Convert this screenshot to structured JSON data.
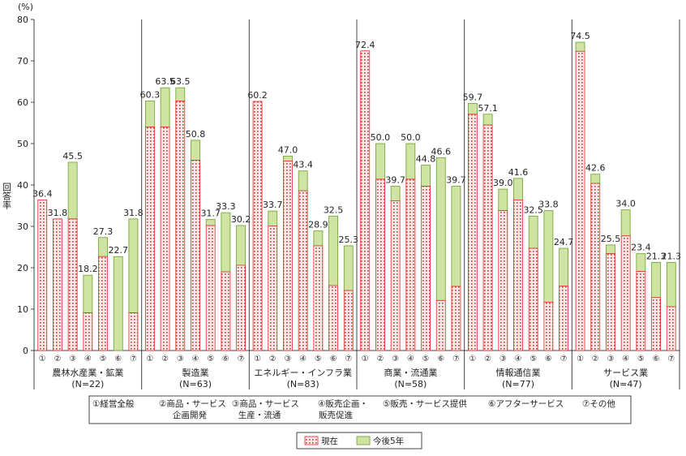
{
  "chart_data": {
    "type": "bar",
    "stacked": true,
    "y_unit": "(%)",
    "ylabel": "回答率",
    "ylim": [
      0,
      80
    ],
    "yticks": [
      0,
      10,
      20,
      30,
      40,
      50,
      60,
      70,
      80
    ],
    "grid": false,
    "bar_labels": [
      "①",
      "②",
      "③",
      "④",
      "⑤",
      "⑥",
      "⑦"
    ],
    "groups": [
      {
        "name": "農林水産業・鉱業",
        "n": "(N=22)",
        "current": [
          36.4,
          31.8,
          31.8,
          9.1,
          22.7,
          0.0,
          9.1
        ],
        "total": [
          36.4,
          31.8,
          45.5,
          18.2,
          27.3,
          22.7,
          31.8
        ]
      },
      {
        "name": "製造業",
        "n": "(N=63)",
        "current": [
          54.0,
          54.0,
          60.3,
          46.0,
          30.2,
          19.0,
          20.6
        ],
        "total": [
          60.3,
          63.5,
          63.5,
          50.8,
          31.7,
          33.3,
          30.2
        ]
      },
      {
        "name": "エネルギー・インフラ業",
        "n": "(N=83)",
        "current": [
          60.2,
          30.1,
          45.8,
          38.6,
          25.3,
          15.7,
          14.5
        ],
        "total": [
          60.2,
          33.7,
          47.0,
          43.4,
          28.9,
          32.5,
          25.3
        ]
      },
      {
        "name": "商業・流通業",
        "n": "(N=58)",
        "current": [
          72.4,
          41.4,
          36.2,
          41.4,
          39.7,
          12.1,
          15.5
        ],
        "total": [
          72.4,
          50.0,
          39.7,
          50.0,
          44.8,
          46.6,
          39.7
        ]
      },
      {
        "name": "情報通信業",
        "n": "(N=77)",
        "current": [
          57.1,
          54.5,
          33.8,
          36.4,
          24.7,
          11.7,
          15.6
        ],
        "total": [
          59.7,
          57.1,
          39.0,
          41.6,
          32.5,
          33.8,
          24.7
        ]
      },
      {
        "name": "サービス業",
        "n": "(N=47)",
        "current": [
          72.3,
          40.4,
          23.4,
          27.7,
          19.1,
          12.8,
          10.6
        ],
        "total": [
          74.5,
          42.6,
          25.5,
          34.0,
          23.4,
          21.3,
          21.3
        ]
      }
    ],
    "series": [
      {
        "name": "現在",
        "color": "#e8262a",
        "fill": "#fde9e9"
      },
      {
        "name": "今後5年",
        "color": "#6aa02a",
        "fill": "#cfe3a2"
      }
    ],
    "bar_legend": [
      "①経営全般",
      "②商品・サービス",
      "企画開発",
      "③商品・サービス",
      "生産・流通",
      "④販売企画・",
      "販売促進",
      "⑤販売・サービス提供",
      "⑥アフターサービス",
      "⑦その他"
    ]
  }
}
